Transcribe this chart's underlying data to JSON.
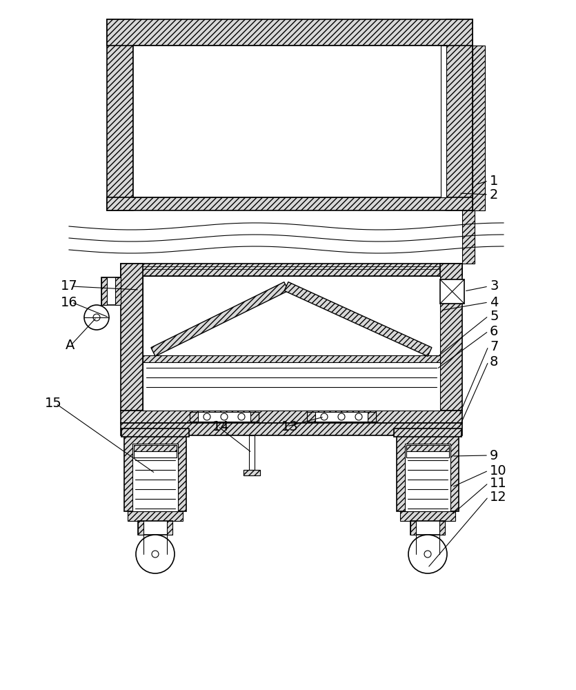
{
  "bg_color": "#ffffff",
  "line_color": "#000000",
  "fig_width": 8.35,
  "fig_height": 10.0,
  "dpi": 100
}
